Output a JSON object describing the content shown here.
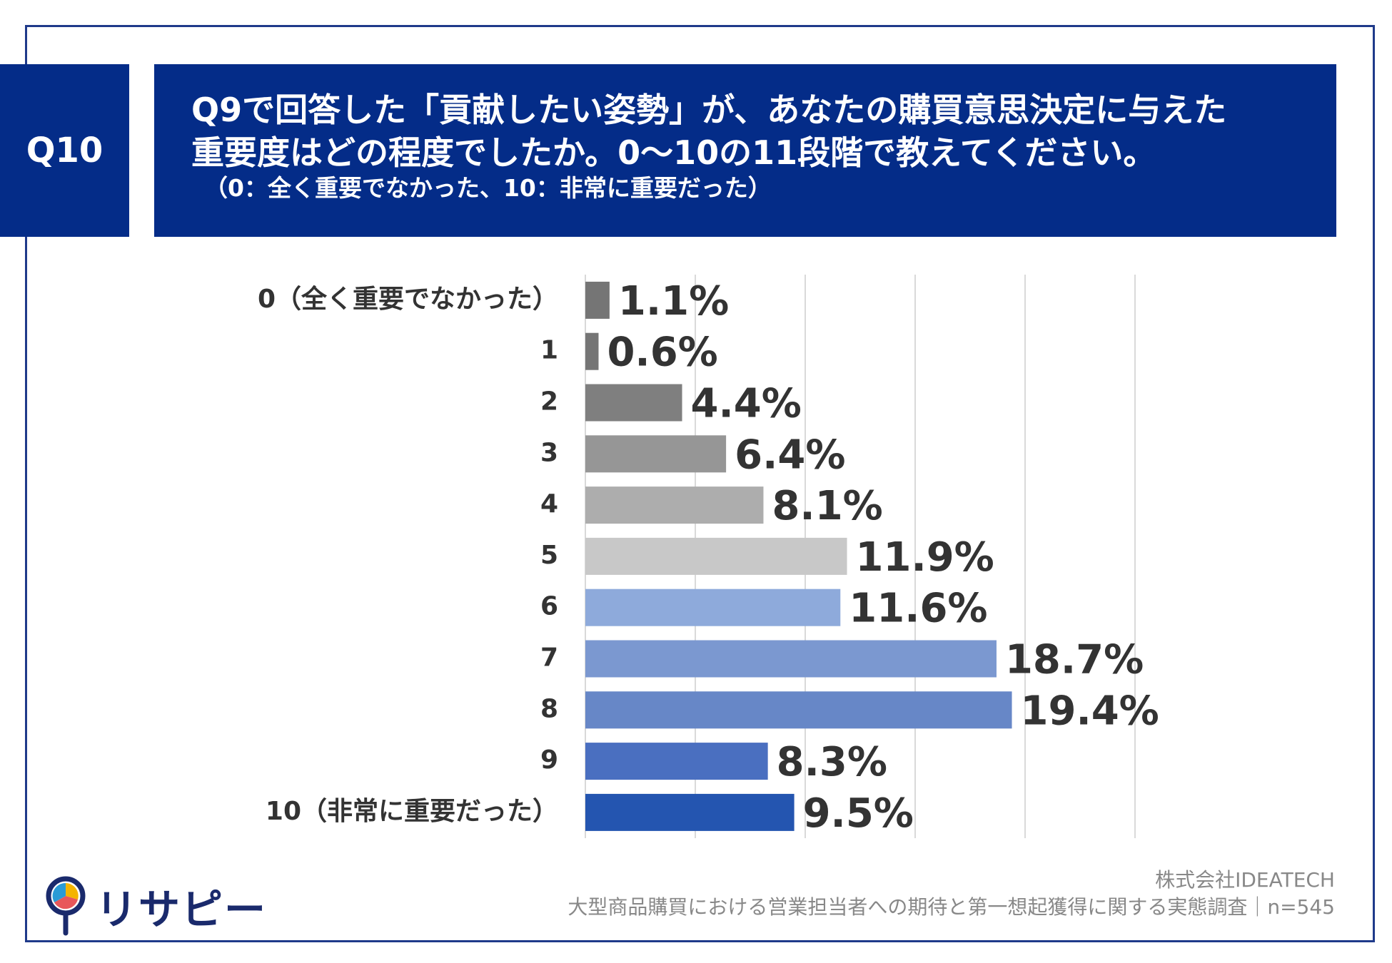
{
  "question": {
    "id": "Q10",
    "line1": "Q9で回答した「貢献したい姿勢」が、あなたの購買意思決定に与えた",
    "line2": "重要度はどの程度でしたか。0～10の11段階で教えてください。",
    "note": "（0：全く重要でなかった、10：非常に重要だった）"
  },
  "chart_data": {
    "type": "bar",
    "orientation": "horizontal",
    "categories": [
      "0（全く重要でなかった）",
      "1",
      "2",
      "3",
      "4",
      "5",
      "6",
      "7",
      "8",
      "9",
      "10（非常に重要だった）"
    ],
    "values": [
      1.1,
      0.6,
      4.4,
      6.4,
      8.1,
      11.9,
      11.6,
      18.7,
      19.4,
      8.3,
      9.5
    ],
    "value_labels": [
      "1.1%",
      "0.6%",
      "4.4%",
      "6.4%",
      "8.1%",
      "11.9%",
      "11.6%",
      "18.7%",
      "19.4%",
      "8.3%",
      "9.5%"
    ],
    "colors": [
      "#757575",
      "#757575",
      "#7f7f7f",
      "#969696",
      "#adadad",
      "#c8c8c8",
      "#8eaadb",
      "#7b98d0",
      "#6787c7",
      "#4a6fc0",
      "#2455b0"
    ],
    "xlim": [
      0,
      25
    ],
    "grid": true,
    "gridlines": [
      0,
      5,
      10,
      15,
      20,
      25
    ]
  },
  "footer": {
    "logo_text": "リサピー",
    "company": "株式会社IDEATECH",
    "survey": "大型商品購買における営業担当者への期待と第一想起獲得に関する実態調査｜n=545"
  }
}
